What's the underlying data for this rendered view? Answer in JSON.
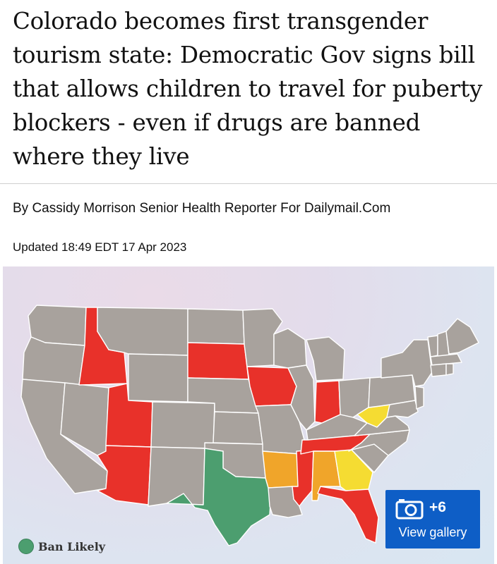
{
  "article": {
    "headline": "Colorado becomes first transgender tourism state: Democratic Gov signs bill that allows children to travel for puberty blockers - even if drugs are banned where they live",
    "byline": "By Cassidy Morrison Senior Health Reporter For Dailymail.Com",
    "updated": "Updated 18:49 EDT 17 Apr 2023"
  },
  "map": {
    "legend_label": "Ban Likely",
    "colors": {
      "neutral": "#a8a29d",
      "ban": "#e8312a",
      "likely": "#4c9e6f",
      "orange": "#f0a52a",
      "yellow": "#f5dc32",
      "border": "#ffffff"
    },
    "state_status": {
      "ID": "ban",
      "UT": "ban",
      "AZ": "ban",
      "SD": "ban",
      "IA": "ban",
      "IN": "ban",
      "TN": "ban",
      "MS": "ban",
      "FL": "ban",
      "TX": "likely",
      "AR": "orange",
      "AL": "orange",
      "GA": "yellow",
      "WV": "yellow"
    }
  },
  "gallery": {
    "icon": "camera-icon",
    "count": "+6",
    "label": "View gallery"
  }
}
